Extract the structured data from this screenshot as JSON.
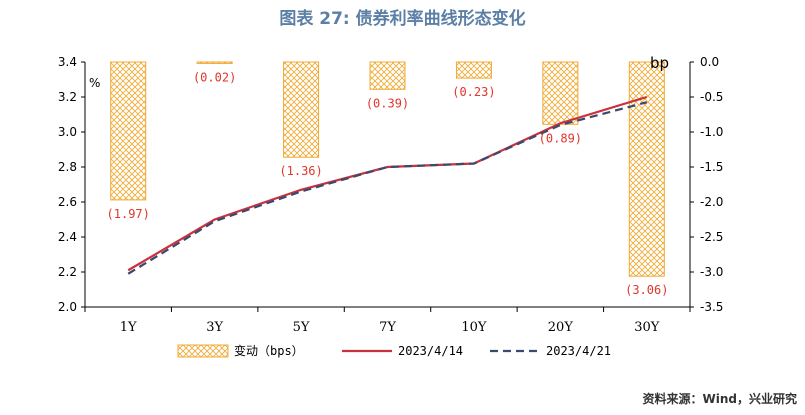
{
  "title": "图表 27: 债券利率曲线形态变化",
  "source": "资料来源：Wind，兴业研究",
  "colors": {
    "bar": "#f0a830",
    "line1": "#c8323c",
    "line2": "#3a4a6e",
    "label": "#e0362b",
    "title": "#5b7fa6"
  },
  "chart_data": {
    "type": "bar",
    "categories": [
      "1Y",
      "3Y",
      "5Y",
      "7Y",
      "10Y",
      "20Y",
      "30Y"
    ],
    "left_axis": {
      "unit": "%",
      "ylim": [
        2.0,
        3.4
      ],
      "ticks": [
        "2.0",
        "2.2",
        "2.4",
        "2.6",
        "2.8",
        "3.0",
        "3.2",
        "3.4"
      ]
    },
    "right_axis": {
      "unit": "bp",
      "ylim": [
        -3.5,
        0.0
      ],
      "ticks": [
        "0.0",
        "-0.5",
        "-1.0",
        "-1.5",
        "-2.0",
        "-2.5",
        "-3.0",
        "-3.5"
      ]
    },
    "series": [
      {
        "name": "变动（bps）",
        "type": "bar",
        "axis": "right",
        "values": [
          -1.97,
          -0.02,
          -1.36,
          -0.39,
          -0.23,
          -0.89,
          -3.06
        ],
        "labels": [
          "(1.97)",
          "(0.02)",
          "(1.36)",
          "(0.39)",
          "(0.23)",
          "(0.89)",
          "(3.06)"
        ]
      },
      {
        "name": "2023/4/14",
        "type": "line",
        "axis": "left",
        "values": [
          2.21,
          2.5,
          2.67,
          2.8,
          2.82,
          3.05,
          3.2
        ]
      },
      {
        "name": "2023/4/21",
        "type": "line",
        "axis": "left",
        "style": "dashed",
        "values": [
          2.19,
          2.49,
          2.66,
          2.8,
          2.82,
          3.04,
          3.17
        ]
      }
    ],
    "legend": "bottom"
  }
}
